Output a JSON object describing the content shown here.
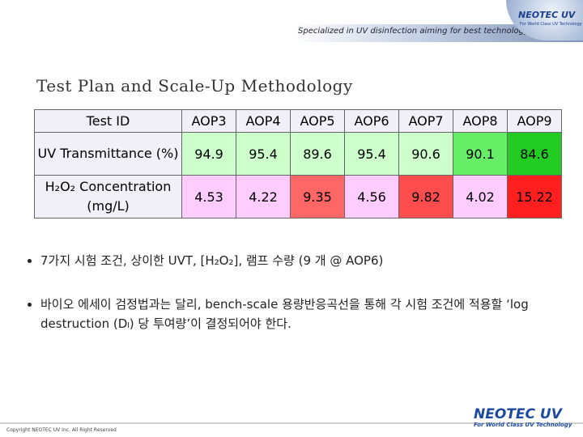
{
  "header": {
    "tagline": "Specialized in UV disinfection aiming for best technology",
    "logo": "NEOTEC UV",
    "logo_sub": "For World Class UV Technology"
  },
  "title": "Test Plan and Scale-Up Methodology",
  "table": {
    "columns": [
      "Test ID",
      "AOP3",
      "AOP4",
      "AOP5",
      "AOP6",
      "AOP7",
      "AOP8",
      "AOP9"
    ],
    "rows": [
      {
        "label": "UV Transmittance (%)",
        "values": [
          94.9,
          95.4,
          89.6,
          95.4,
          90.6,
          90.1,
          84.6
        ],
        "colors": [
          "#ccffcc",
          "#ccffcc",
          "#ccffcc",
          "#ccffcc",
          "#ccffcc",
          "#66ee66",
          "#22cc22"
        ]
      },
      {
        "label": "H₂O₂ Concentration (mg/L)",
        "values": [
          4.53,
          4.22,
          9.35,
          4.56,
          9.82,
          4.02,
          15.22
        ],
        "colors": [
          "#ffccff",
          "#ffccff",
          "#ff6666",
          "#ffccff",
          "#ff4d4d",
          "#ffccff",
          "#ff1f1f"
        ]
      }
    ]
  },
  "bullets": [
    "7가지 시험 조건, 상이한 UVT, [H₂O₂], 램프 수량 (9 개 @ AOP6)",
    "바이오 에세이 검정법과는 달리, bench-scale 용량반응곡선을 통해 각 시험 조건에 적용할 ‘log destruction (Dₗ) 당 투여량’이 결정되어야 한다."
  ],
  "footer": {
    "copyright": "Copyright NEOTEC UV Inc. All Right Reserved",
    "logo": "NEOTEC UV",
    "logo_sub": "For World Class UV Technology"
  }
}
